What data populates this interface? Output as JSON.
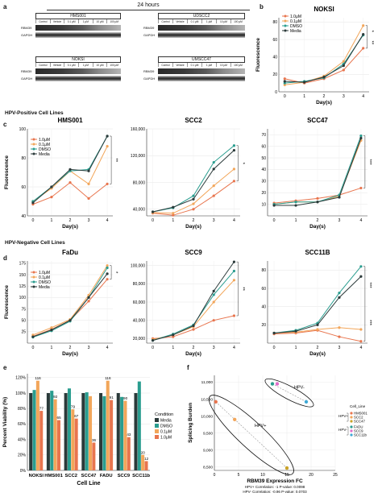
{
  "panels": {
    "a": "a",
    "b": "b",
    "c": "c",
    "d": "d",
    "e": "e",
    "f": "f"
  },
  "time_label": "24 hours",
  "blots": [
    {
      "title": "HMS001",
      "lanes": [
        "Control",
        "Vehicle",
        "0.1 μM",
        "1 μM",
        "10 μM",
        "100 μM"
      ],
      "rows": [
        "RBM39",
        "GAPDH"
      ]
    },
    {
      "title": "UDSCC2",
      "lanes": [
        "Control",
        "Vehicle",
        "0.1 μM",
        "1 μM",
        "10 μM",
        "100 μM"
      ],
      "rows": [
        "RBM39",
        "GAPDH"
      ]
    },
    {
      "title": "NOKSI",
      "lanes": [
        "Control",
        "Vehicle",
        "0.1 μM",
        "1 μM",
        "10 μM",
        "100 μM"
      ],
      "rows": [
        "RBM39",
        "GAPDH"
      ]
    },
    {
      "title": "UMSCC47",
      "lanes": [
        "Control",
        "Vehicle",
        "0.1 μM",
        "1 μM",
        "10 μM",
        "100 μM"
      ],
      "rows": [
        "RBM39",
        "GAPDH"
      ]
    }
  ],
  "sections": {
    "hpv_pos": "HPV-Positive Cell Lines",
    "hpv_neg": "HPV-Negative Cell Lines"
  },
  "colors": {
    "1.0uM": "#E8754E",
    "0.1uM": "#F2A65A",
    "DMSO": "#2A9D8F",
    "Media": "#2B3A3A"
  },
  "line_legend": [
    "1.0μM",
    "0.1μM",
    "DMSO",
    "Media"
  ],
  "chart_data": [
    {
      "id": "b",
      "type": "line",
      "title": "NOKSI",
      "xlabel": "Day(s)",
      "ylabel": "Fluorescence",
      "x": [
        0,
        1,
        2,
        3,
        4
      ],
      "ylim": [
        0,
        85
      ],
      "yticks": [
        0,
        20,
        40,
        60,
        80
      ],
      "yticklabels": [
        "0",
        "20",
        "40",
        "60",
        "80"
      ],
      "sig": [
        "*",
        "**"
      ],
      "series": [
        {
          "name": "1.0μM",
          "values": [
            15,
            10,
            15,
            25,
            50
          ]
        },
        {
          "name": "0.1μM",
          "values": [
            8,
            11,
            18,
            35,
            76
          ]
        },
        {
          "name": "DMSO",
          "values": [
            10,
            12,
            16,
            32,
            65
          ]
        },
        {
          "name": "Media",
          "values": [
            12,
            11,
            17,
            30,
            66
          ]
        }
      ]
    },
    {
      "id": "c1",
      "type": "line",
      "title": "HMS001",
      "xlabel": "Day(s)",
      "ylabel": "Fluorescence",
      "x": [
        0,
        1,
        2,
        3,
        4
      ],
      "ylim": [
        40,
        100
      ],
      "yticks": [
        40,
        60,
        80,
        100
      ],
      "yticklabels": [
        "40",
        "60",
        "80",
        "100"
      ],
      "sig": [
        "**"
      ],
      "series": [
        {
          "name": "1.0μM",
          "values": [
            48,
            53,
            63,
            52,
            62
          ]
        },
        {
          "name": "0.1μM",
          "values": [
            50,
            59,
            71,
            62,
            88
          ]
        },
        {
          "name": "DMSO",
          "values": [
            50,
            60,
            71,
            72,
            95
          ]
        },
        {
          "name": "Media",
          "values": [
            49,
            60,
            72,
            71,
            95
          ]
        }
      ]
    },
    {
      "id": "c2",
      "type": "line",
      "title": "SCC2",
      "xlabel": "Day(s)",
      "ylabel": "",
      "x": [
        0,
        1,
        2,
        3,
        4
      ],
      "ylim": [
        30000,
        160000
      ],
      "yticks": [
        40000,
        80000,
        120000,
        160000
      ],
      "yticklabels": [
        "40,000",
        "80,000",
        "120,000",
        "160,000"
      ],
      "sig": [
        "*"
      ],
      "series": [
        {
          "name": "1.0μM",
          "values": [
            34000,
            31000,
            40000,
            60000,
            82000
          ]
        },
        {
          "name": "0.1μM",
          "values": [
            35000,
            34000,
            48000,
            75000,
            100000
          ]
        },
        {
          "name": "DMSO",
          "values": [
            36000,
            42000,
            60000,
            110000,
            135000
          ]
        },
        {
          "name": "Media",
          "values": [
            36000,
            43000,
            55000,
            100000,
            128000
          ]
        }
      ]
    },
    {
      "id": "c3",
      "type": "line",
      "title": "SCC47",
      "xlabel": "Day(s)",
      "ylabel": "",
      "x": [
        0,
        1,
        2,
        3,
        4
      ],
      "ylim": [
        0,
        75
      ],
      "yticks": [
        10,
        20,
        30,
        40,
        50,
        60,
        70
      ],
      "yticklabels": [
        "10",
        "20",
        "30",
        "40",
        "50",
        "60",
        "70"
      ],
      "sig": [
        "***"
      ],
      "series": [
        {
          "name": "1.0μM",
          "values": [
            11,
            13,
            15,
            18,
            24
          ]
        },
        {
          "name": "0.1μM",
          "values": [
            10,
            12,
            12,
            17,
            65
          ]
        },
        {
          "name": "DMSO",
          "values": [
            10,
            12,
            12,
            18,
            69
          ]
        },
        {
          "name": "Media",
          "values": [
            9,
            9,
            12,
            16,
            67
          ]
        }
      ]
    },
    {
      "id": "d1",
      "type": "line",
      "title": "FaDu",
      "xlabel": "Day(s)",
      "ylabel": "Fluorescence",
      "x": [
        0,
        1,
        2,
        3,
        4
      ],
      "ylim": [
        0,
        180
      ],
      "yticks": [
        25,
        50,
        75,
        100,
        125,
        150,
        175
      ],
      "yticklabels": [
        "25",
        "50",
        "75",
        "100",
        "125",
        "150",
        "175"
      ],
      "sig": [
        "*"
      ],
      "series": [
        {
          "name": "1.0μM",
          "values": [
            15,
            30,
            50,
            92,
            140
          ]
        },
        {
          "name": "0.1μM",
          "values": [
            18,
            34,
            52,
            105,
            170
          ]
        },
        {
          "name": "DMSO",
          "values": [
            13,
            27,
            48,
            100,
            165
          ]
        },
        {
          "name": "Media",
          "values": [
            14,
            29,
            50,
            100,
            152
          ]
        }
      ]
    },
    {
      "id": "d2",
      "type": "line",
      "title": "SCC9",
      "xlabel": "Day(s)",
      "ylabel": "",
      "x": [
        0,
        1,
        2,
        3,
        4
      ],
      "ylim": [
        15000,
        105000
      ],
      "yticks": [
        20000,
        40000,
        60000,
        80000,
        100000
      ],
      "yticklabels": [
        "20,000",
        "40,000",
        "60,000",
        "80,000",
        "100,000"
      ],
      "sig": [
        "**"
      ],
      "series": [
        {
          "name": "1.0μM",
          "values": [
            20000,
            22000,
            30000,
            40000,
            45000
          ]
        },
        {
          "name": "0.1μM",
          "values": [
            19000,
            24000,
            33000,
            60000,
            84000
          ]
        },
        {
          "name": "DMSO",
          "values": [
            18000,
            25000,
            35000,
            68000,
            94000
          ]
        },
        {
          "name": "Media",
          "values": [
            18000,
            24000,
            34000,
            72000,
            104000
          ]
        }
      ]
    },
    {
      "id": "d3",
      "type": "line",
      "title": "SCC11B",
      "xlabel": "Day(s)",
      "ylabel": "",
      "x": [
        0,
        1,
        2,
        3,
        4
      ],
      "ylim": [
        0,
        90
      ],
      "yticks": [
        20,
        40,
        60,
        80
      ],
      "yticklabels": [
        "20",
        "40",
        "60",
        "80"
      ],
      "sig": [
        "***",
        "***"
      ],
      "series": [
        {
          "name": "1.0μM",
          "values": [
            10,
            11,
            14,
            7,
            2
          ]
        },
        {
          "name": "0.1μM",
          "values": [
            11,
            12,
            15,
            17,
            15
          ]
        },
        {
          "name": "DMSO",
          "values": [
            11,
            14,
            22,
            55,
            84
          ]
        },
        {
          "name": "Media",
          "values": [
            11,
            13,
            20,
            50,
            73
          ]
        }
      ]
    },
    {
      "id": "e",
      "type": "bar",
      "title": "",
      "xlabel": "Cell Line",
      "ylabel": "Percent Viability (%)",
      "categories": [
        "NOKSI",
        "HMS001",
        "SCC2",
        "SCC47",
        "FADU",
        "SCC9",
        "SCC11b"
      ],
      "ylim": [
        0,
        125
      ],
      "yticks": [
        0,
        20,
        40,
        60,
        80,
        100,
        120
      ],
      "yticklabels": [
        "0%",
        "20%",
        "40%",
        "60%",
        "80%",
        "100%",
        "120%"
      ],
      "legend_title": "Condition",
      "series": [
        {
          "name": "Media",
          "values": [
            100,
            100,
            100,
            100,
            100,
            100,
            100
          ]
        },
        {
          "name": "DMSO",
          "values": [
            104,
            103,
            106,
            101,
            96,
            95,
            115
          ]
        },
        {
          "name": "0.1μM",
          "values": [
            116,
            92,
            79,
            96,
            116,
            90,
            20
          ]
        },
        {
          "name": "1.0μM",
          "values": [
            77,
            65,
            67,
            36,
            91,
            43,
            12
          ]
        }
      ],
      "labels": {
        "0.1μM": [
          "116",
          "92",
          "79",
          "",
          "116",
          "90",
          "20"
        ],
        "1.0μM": [
          "77",
          "65",
          "67",
          "36",
          "91",
          "43",
          "12"
        ]
      }
    },
    {
      "id": "f",
      "type": "scatter",
      "title": "",
      "xlabel": "RBM39 Expression FC",
      "ylabel": "Splicing Burden",
      "xlim": [
        0,
        25
      ],
      "ylim": [
        8400,
        11200
      ],
      "xticks": [
        0,
        5,
        10,
        15,
        20,
        25
      ],
      "xticklabels": [
        "0",
        "5",
        "10",
        "15",
        "20",
        "25"
      ],
      "yticks": [
        8500,
        9000,
        9500,
        10000,
        10500,
        11000
      ],
      "yticklabels": [
        "8,500",
        "9,000",
        "9,500",
        "10,000",
        "10,500",
        "11,000"
      ],
      "legend_title": "Cell_Line",
      "groups": [
        {
          "name": "HPV+",
          "points": [
            "HMS001",
            "SCC2",
            "SCC47"
          ]
        },
        {
          "name": "HPV-",
          "points": [
            "FADU",
            "SCC9",
            "SCC11b"
          ]
        }
      ],
      "points": [
        {
          "name": "HMS001",
          "x": 0.3,
          "y": 10420,
          "color": "#E8754E"
        },
        {
          "name": "SCC2",
          "x": 4.2,
          "y": 9900,
          "color": "#F2A65A"
        },
        {
          "name": "SCC47",
          "x": 15,
          "y": 8470,
          "color": "#C9A227"
        },
        {
          "name": "FADU",
          "x": 12,
          "y": 10950,
          "color": "#2A9D8F"
        },
        {
          "name": "SCC9",
          "x": 13,
          "y": 10950,
          "color": "#E06CCB"
        },
        {
          "name": "SCC11b",
          "x": 19,
          "y": 10420,
          "color": "#3FA9D6"
        }
      ],
      "ellipse_labels": [
        "HPV+",
        "HPV-"
      ],
      "notes": [
        "HPV+ Correlation: -1 P-value: 0.0098",
        "HPV- Correlation: -0.96 P-value: 0.0703"
      ]
    }
  ]
}
